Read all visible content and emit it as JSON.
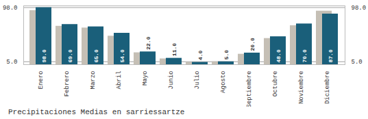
{
  "chart_data": {
    "type": "bar",
    "title": "Precipitaciones Medias en sarriessartze",
    "categories": [
      "Enero",
      "Febrero",
      "Marzo",
      "Abril",
      "Mayo",
      "Junio",
      "Julio",
      "Agosto",
      "Septiembre",
      "Octubre",
      "Noviembre",
      "Diciembre"
    ],
    "series": [
      {
        "color": "#c5bfb5",
        "values": [
          93.0,
          66.0,
          63.0,
          49.0,
          20.5,
          10.0,
          4.0,
          5.0,
          18.0,
          45.0,
          67.0,
          92.0
        ]
      },
      {
        "color": "#1a5f7a",
        "values": [
          98.0,
          69.0,
          65.0,
          54.0,
          22.0,
          11.0,
          4.0,
          5.0,
          20.0,
          48.0,
          70.0,
          87.0
        ],
        "data_labels": true,
        "value_labels": [
          "98.0",
          "69.0",
          "65.0",
          "54.0",
          "22.0",
          "11.0",
          "4.0",
          "5.0",
          "20.0",
          "48.0",
          "70.0",
          "87.0"
        ]
      }
    ],
    "ylim": [
      0,
      101
    ],
    "yticks": [
      {
        "value": 5.0,
        "label": "5.0"
      },
      {
        "value": 98.0,
        "label": "98.0"
      }
    ],
    "y2lim": [
      0,
      101
    ],
    "y2ticks": [
      {
        "value": 5.0,
        "label": "5.0"
      },
      {
        "value": 98.0,
        "label": "98.0"
      }
    ],
    "grid": true
  }
}
